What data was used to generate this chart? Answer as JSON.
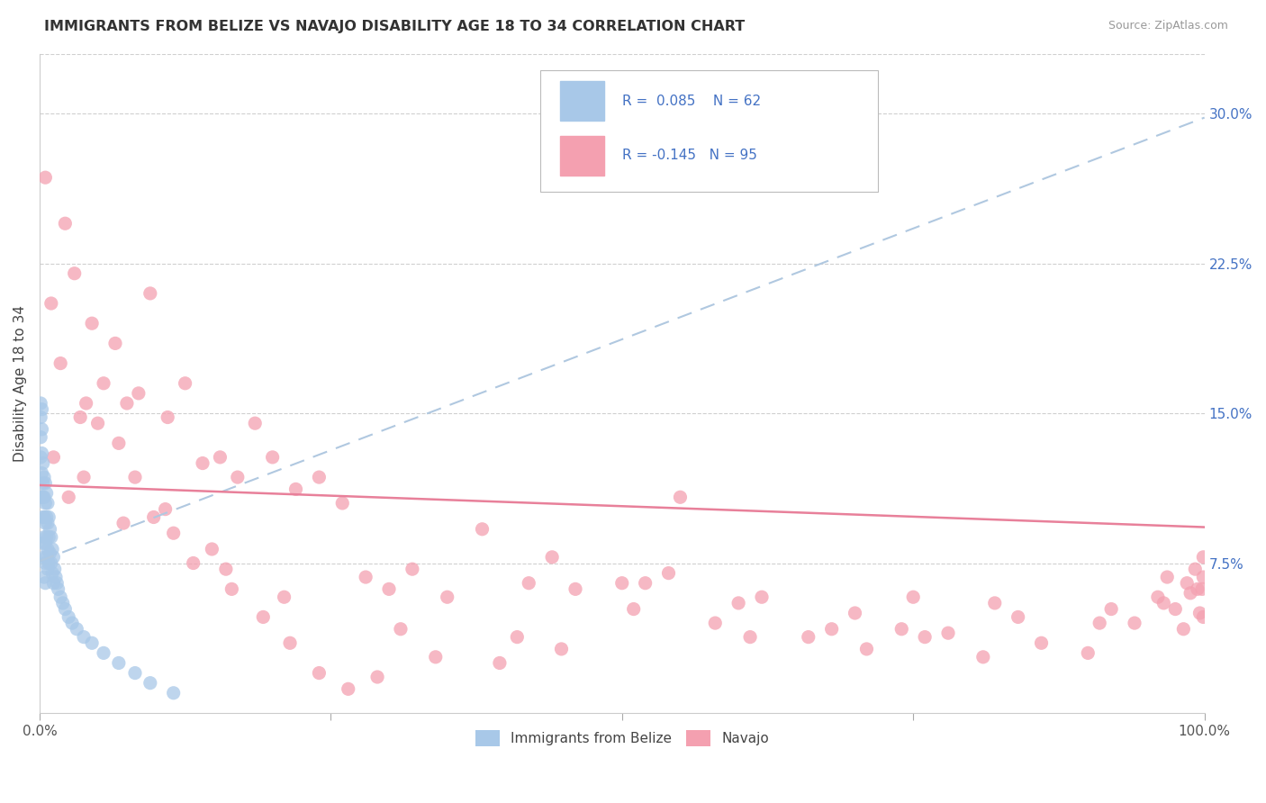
{
  "title": "IMMIGRANTS FROM BELIZE VS NAVAJO DISABILITY AGE 18 TO 34 CORRELATION CHART",
  "source": "Source: ZipAtlas.com",
  "ylabel": "Disability Age 18 to 34",
  "legend_label_1": "Immigrants from Belize",
  "legend_label_2": "Navajo",
  "r1": 0.085,
  "n1": 62,
  "r2": -0.145,
  "n2": 95,
  "color_blue": "#a8c8e8",
  "color_pink": "#f4a0b0",
  "color_blue_text": "#4472c4",
  "trend_blue_color": "#b0c8e0",
  "trend_pink_color": "#e8809a",
  "xmin": 0.0,
  "xmax": 1.0,
  "ymin": 0.0,
  "ymax": 0.33,
  "blue_trend_x": [
    0.0,
    1.0
  ],
  "blue_trend_y": [
    0.076,
    0.298
  ],
  "pink_trend_x": [
    0.0,
    1.0
  ],
  "pink_trend_y": [
    0.114,
    0.093
  ],
  "blue_x": [
    0.001,
    0.001,
    0.001,
    0.001,
    0.002,
    0.002,
    0.002,
    0.002,
    0.002,
    0.003,
    0.003,
    0.003,
    0.003,
    0.003,
    0.004,
    0.004,
    0.004,
    0.004,
    0.004,
    0.004,
    0.005,
    0.005,
    0.005,
    0.005,
    0.005,
    0.005,
    0.006,
    0.006,
    0.006,
    0.006,
    0.007,
    0.007,
    0.007,
    0.007,
    0.008,
    0.008,
    0.008,
    0.009,
    0.009,
    0.01,
    0.01,
    0.011,
    0.011,
    0.012,
    0.012,
    0.013,
    0.014,
    0.015,
    0.016,
    0.018,
    0.02,
    0.022,
    0.025,
    0.028,
    0.032,
    0.038,
    0.045,
    0.055,
    0.068,
    0.082,
    0.095,
    0.115
  ],
  "blue_y": [
    0.155,
    0.148,
    0.138,
    0.128,
    0.152,
    0.142,
    0.13,
    0.12,
    0.108,
    0.125,
    0.115,
    0.108,
    0.098,
    0.085,
    0.118,
    0.108,
    0.098,
    0.088,
    0.078,
    0.068,
    0.115,
    0.105,
    0.095,
    0.085,
    0.075,
    0.065,
    0.11,
    0.098,
    0.088,
    0.078,
    0.105,
    0.095,
    0.082,
    0.072,
    0.098,
    0.088,
    0.075,
    0.092,
    0.08,
    0.088,
    0.075,
    0.082,
    0.07,
    0.078,
    0.065,
    0.072,
    0.068,
    0.065,
    0.062,
    0.058,
    0.055,
    0.052,
    0.048,
    0.045,
    0.042,
    0.038,
    0.035,
    0.03,
    0.025,
    0.02,
    0.015,
    0.01
  ],
  "pink_x": [
    0.005,
    0.01,
    0.018,
    0.022,
    0.03,
    0.038,
    0.045,
    0.055,
    0.065,
    0.075,
    0.085,
    0.095,
    0.11,
    0.125,
    0.14,
    0.155,
    0.17,
    0.185,
    0.2,
    0.22,
    0.24,
    0.26,
    0.28,
    0.3,
    0.32,
    0.35,
    0.38,
    0.42,
    0.46,
    0.5,
    0.54,
    0.58,
    0.62,
    0.66,
    0.7,
    0.74,
    0.78,
    0.82,
    0.86,
    0.9,
    0.94,
    0.96,
    0.975,
    0.985,
    0.992,
    0.996,
    0.998,
    0.999,
    0.999,
    0.999,
    0.012,
    0.025,
    0.035,
    0.05,
    0.068,
    0.082,
    0.098,
    0.115,
    0.132,
    0.148,
    0.165,
    0.192,
    0.215,
    0.24,
    0.265,
    0.29,
    0.34,
    0.395,
    0.448,
    0.52,
    0.6,
    0.68,
    0.76,
    0.84,
    0.92,
    0.968,
    0.988,
    0.04,
    0.072,
    0.108,
    0.16,
    0.21,
    0.31,
    0.41,
    0.51,
    0.61,
    0.71,
    0.81,
    0.91,
    0.965,
    0.982,
    0.994,
    0.55,
    0.75,
    0.44
  ],
  "pink_y": [
    0.268,
    0.205,
    0.175,
    0.245,
    0.22,
    0.118,
    0.195,
    0.165,
    0.185,
    0.155,
    0.16,
    0.21,
    0.148,
    0.165,
    0.125,
    0.128,
    0.118,
    0.145,
    0.128,
    0.112,
    0.118,
    0.105,
    0.068,
    0.062,
    0.072,
    0.058,
    0.092,
    0.065,
    0.062,
    0.065,
    0.07,
    0.045,
    0.058,
    0.038,
    0.05,
    0.042,
    0.04,
    0.055,
    0.035,
    0.03,
    0.045,
    0.058,
    0.052,
    0.065,
    0.072,
    0.05,
    0.062,
    0.048,
    0.068,
    0.078,
    0.128,
    0.108,
    0.148,
    0.145,
    0.135,
    0.118,
    0.098,
    0.09,
    0.075,
    0.082,
    0.062,
    0.048,
    0.035,
    0.02,
    0.012,
    0.018,
    0.028,
    0.025,
    0.032,
    0.065,
    0.055,
    0.042,
    0.038,
    0.048,
    0.052,
    0.068,
    0.06,
    0.155,
    0.095,
    0.102,
    0.072,
    0.058,
    0.042,
    0.038,
    0.052,
    0.038,
    0.032,
    0.028,
    0.045,
    0.055,
    0.042,
    0.062,
    0.108,
    0.058,
    0.078
  ]
}
